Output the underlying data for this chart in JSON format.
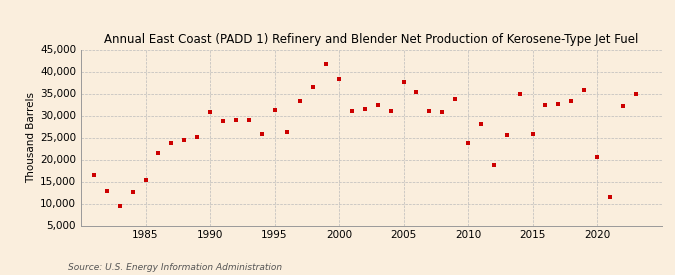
{
  "title": "Annual East Coast (PADD 1) Refinery and Blender Net Production of Kerosene-Type Jet Fuel",
  "ylabel": "Thousand Barrels",
  "source": "Source: U.S. Energy Information Administration",
  "background_color": "#faeedd",
  "plot_bg_color": "#faeedd",
  "marker_color": "#cc0000",
  "years": [
    1981,
    1982,
    1983,
    1984,
    1985,
    1986,
    1987,
    1988,
    1989,
    1990,
    1991,
    1992,
    1993,
    1994,
    1995,
    1996,
    1997,
    1998,
    1999,
    2000,
    2001,
    2002,
    2003,
    2004,
    2005,
    2006,
    2007,
    2008,
    2009,
    2010,
    2011,
    2012,
    2013,
    2014,
    2015,
    2016,
    2017,
    2018,
    2019,
    2020,
    2021,
    2022,
    2023
  ],
  "values": [
    16500,
    12800,
    9500,
    12700,
    15400,
    21500,
    23800,
    24500,
    25200,
    30800,
    28700,
    28900,
    29000,
    25900,
    31300,
    26300,
    33200,
    36500,
    41700,
    38200,
    31100,
    31500,
    32300,
    31000,
    37600,
    35400,
    31000,
    30800,
    33800,
    23700,
    28000,
    18700,
    25600,
    34800,
    25800,
    32500,
    32700,
    33200,
    35800,
    20500,
    11500,
    32200,
    34900
  ],
  "ylim": [
    5000,
    45000
  ],
  "yticks": [
    5000,
    10000,
    15000,
    20000,
    25000,
    30000,
    35000,
    40000,
    45000
  ],
  "xlim": [
    1980,
    2025
  ],
  "xticks": [
    1985,
    1990,
    1995,
    2000,
    2005,
    2010,
    2015,
    2020
  ]
}
